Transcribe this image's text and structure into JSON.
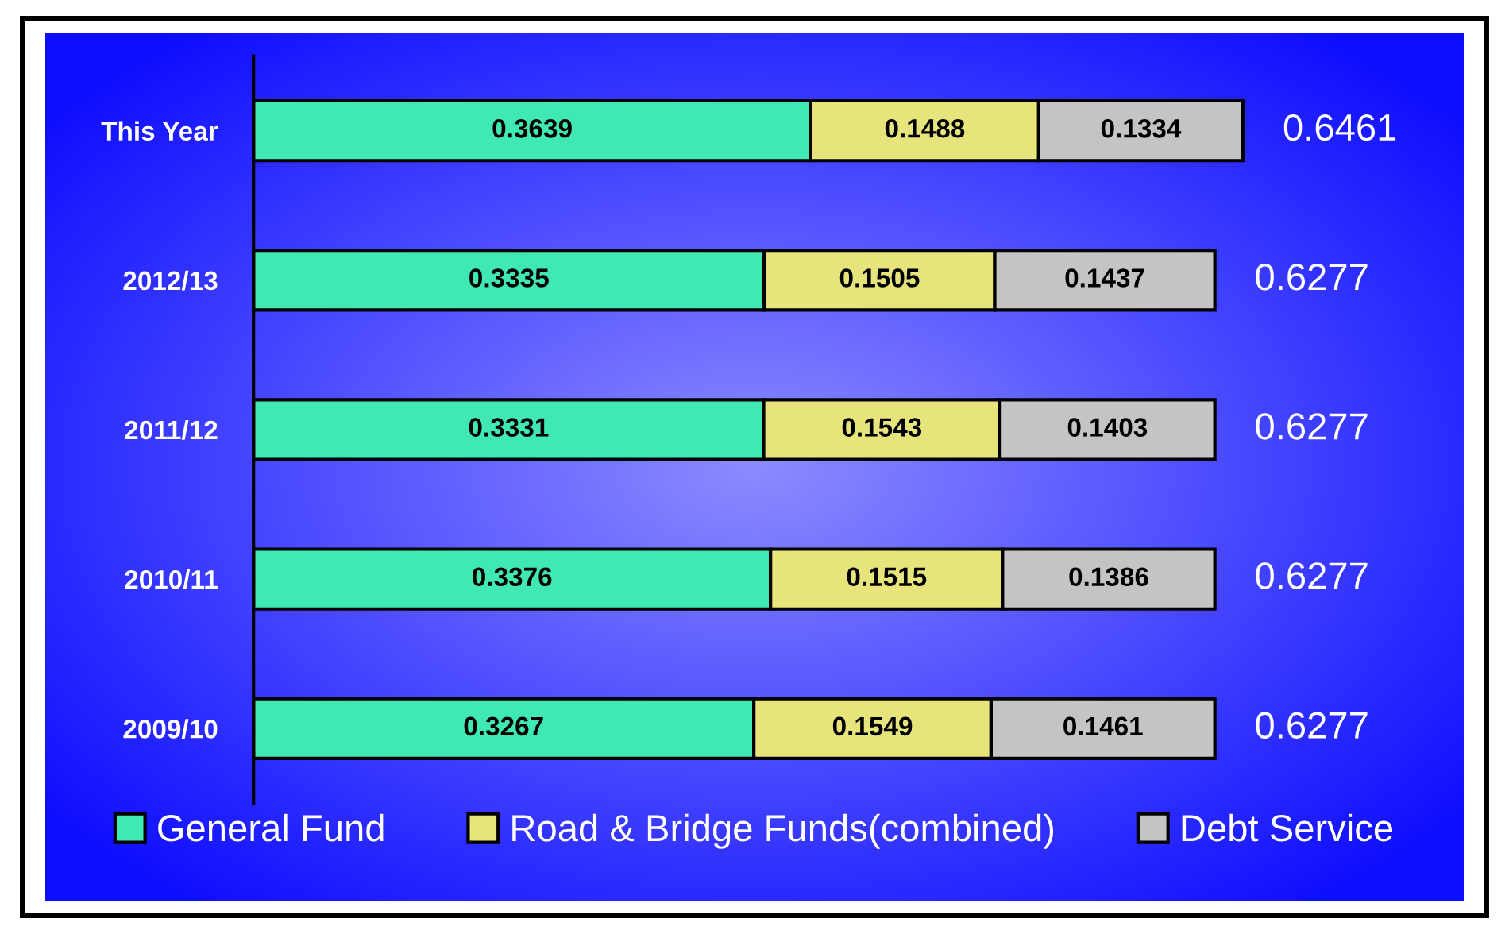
{
  "chart_data": {
    "type": "bar",
    "orientation": "horizontal",
    "stacked": true,
    "data_labels": true,
    "legend": "bottom",
    "grid": false,
    "categories": [
      "This Year",
      "2012/13",
      "2011/12",
      "2010/11",
      "2009/10"
    ],
    "series": [
      {
        "name": "General Fund",
        "color": "#40e8b4",
        "values": [
          0.3639,
          0.3335,
          0.3331,
          0.3376,
          0.3267
        ]
      },
      {
        "name": "Road & Bridge Funds(combined)",
        "color": "#e8e47c",
        "values": [
          0.1488,
          0.1505,
          0.1543,
          0.1515,
          0.1549
        ]
      },
      {
        "name": "Debt Service",
        "color": "#c4c4c4",
        "values": [
          0.1334,
          0.1437,
          0.1403,
          0.1386,
          0.1461
        ]
      }
    ],
    "totals": [
      "0.6461",
      "0.6277",
      "0.6277",
      "0.6277",
      "0.6277"
    ]
  }
}
